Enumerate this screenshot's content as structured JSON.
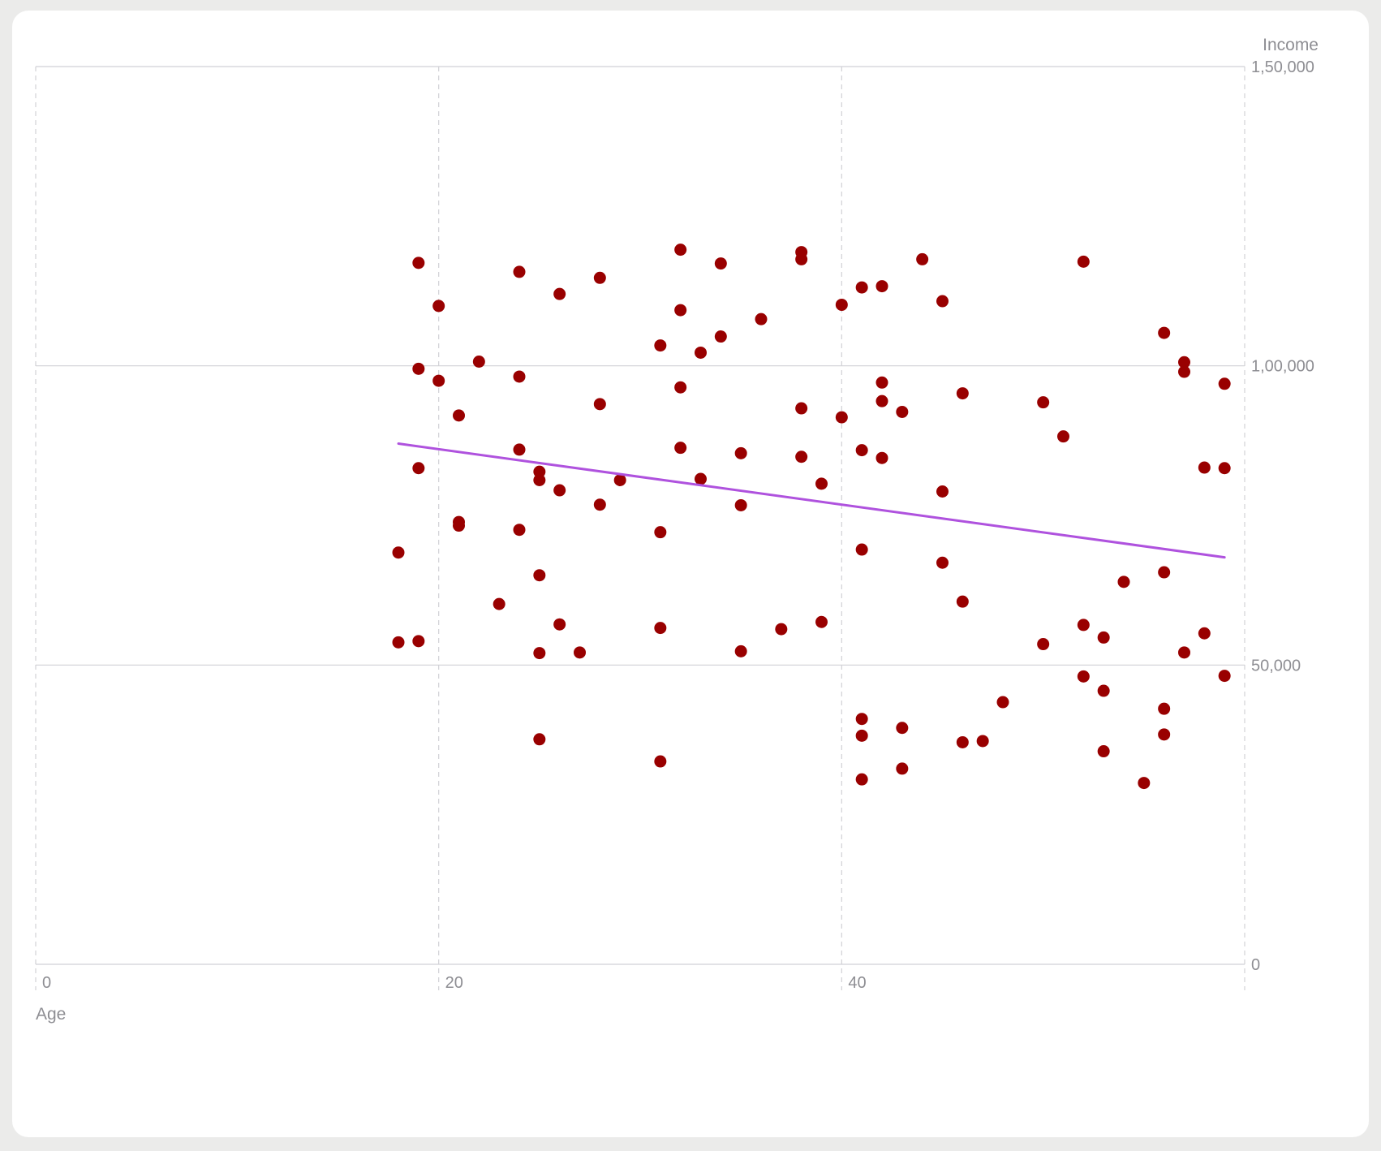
{
  "chart_data": {
    "type": "scatter",
    "xlabel": "Age",
    "ylabel": "Income",
    "xlim": [
      0,
      60
    ],
    "ylim": [
      0,
      150000
    ],
    "x_ticks": [
      0,
      20,
      40
    ],
    "x_tick_labels": [
      "0",
      "20",
      "40"
    ],
    "y_ticks": [
      0,
      50000,
      100000,
      150000
    ],
    "y_tick_labels": [
      "0",
      "50,000",
      "1,00,000",
      "1,50,000"
    ],
    "y_axis_position": "right",
    "grid": true,
    "colors": {
      "points": "#990000",
      "trend": "#af52de",
      "grid": "#d1d1d6",
      "text": "#8e8e93"
    },
    "points": [
      [
        18,
        68800
      ],
      [
        18,
        53800
      ],
      [
        19,
        54000
      ],
      [
        19,
        82900
      ],
      [
        19,
        99500
      ],
      [
        19,
        117200
      ],
      [
        20,
        110000
      ],
      [
        20,
        97500
      ],
      [
        21,
        91700
      ],
      [
        21,
        73900
      ],
      [
        21,
        73300
      ],
      [
        22,
        100700
      ],
      [
        23,
        60200
      ],
      [
        24,
        98200
      ],
      [
        24,
        86000
      ],
      [
        24,
        72600
      ],
      [
        24,
        115700
      ],
      [
        25,
        82300
      ],
      [
        25,
        80900
      ],
      [
        25,
        65000
      ],
      [
        25,
        52000
      ],
      [
        25,
        37600
      ],
      [
        26,
        112000
      ],
      [
        26,
        79200
      ],
      [
        26,
        56800
      ],
      [
        27,
        52100
      ],
      [
        28,
        114700
      ],
      [
        28,
        93600
      ],
      [
        28,
        76800
      ],
      [
        29,
        80900
      ],
      [
        31,
        103400
      ],
      [
        31,
        72200
      ],
      [
        31,
        56200
      ],
      [
        31,
        33900
      ],
      [
        32,
        119400
      ],
      [
        32,
        109300
      ],
      [
        32,
        96400
      ],
      [
        32,
        86300
      ],
      [
        33,
        102200
      ],
      [
        33,
        81100
      ],
      [
        34,
        117100
      ],
      [
        34,
        104900
      ],
      [
        35,
        85400
      ],
      [
        35,
        76700
      ],
      [
        35,
        52300
      ],
      [
        36,
        107800
      ],
      [
        37,
        56000
      ],
      [
        38,
        119000
      ],
      [
        38,
        117800
      ],
      [
        38,
        92900
      ],
      [
        38,
        84800
      ],
      [
        39,
        80300
      ],
      [
        39,
        57200
      ],
      [
        40,
        110200
      ],
      [
        40,
        91400
      ],
      [
        41,
        113100
      ],
      [
        41,
        85900
      ],
      [
        41,
        69300
      ],
      [
        41,
        41000
      ],
      [
        41,
        38200
      ],
      [
        41,
        30900
      ],
      [
        42,
        113300
      ],
      [
        42,
        97200
      ],
      [
        42,
        94100
      ],
      [
        42,
        84600
      ],
      [
        43,
        92300
      ],
      [
        43,
        39500
      ],
      [
        43,
        32700
      ],
      [
        44,
        117800
      ],
      [
        45,
        110800
      ],
      [
        45,
        79000
      ],
      [
        45,
        67100
      ],
      [
        46,
        95400
      ],
      [
        46,
        60600
      ],
      [
        46,
        37100
      ],
      [
        47,
        37300
      ],
      [
        48,
        43800
      ],
      [
        50,
        93900
      ],
      [
        50,
        53500
      ],
      [
        51,
        88200
      ],
      [
        52,
        117400
      ],
      [
        52,
        56700
      ],
      [
        52,
        48100
      ],
      [
        53,
        54600
      ],
      [
        53,
        45700
      ],
      [
        53,
        35600
      ],
      [
        54,
        63900
      ],
      [
        55,
        30300
      ],
      [
        56,
        105500
      ],
      [
        56,
        65500
      ],
      [
        56,
        42700
      ],
      [
        56,
        38400
      ],
      [
        57,
        100600
      ],
      [
        57,
        99000
      ],
      [
        57,
        52100
      ],
      [
        58,
        83000
      ],
      [
        58,
        55300
      ],
      [
        59,
        97000
      ],
      [
        59,
        82900
      ],
      [
        59,
        48200
      ]
    ],
    "trend_line": {
      "x": [
        18,
        59
      ],
      "y": [
        87000,
        68000
      ]
    }
  }
}
